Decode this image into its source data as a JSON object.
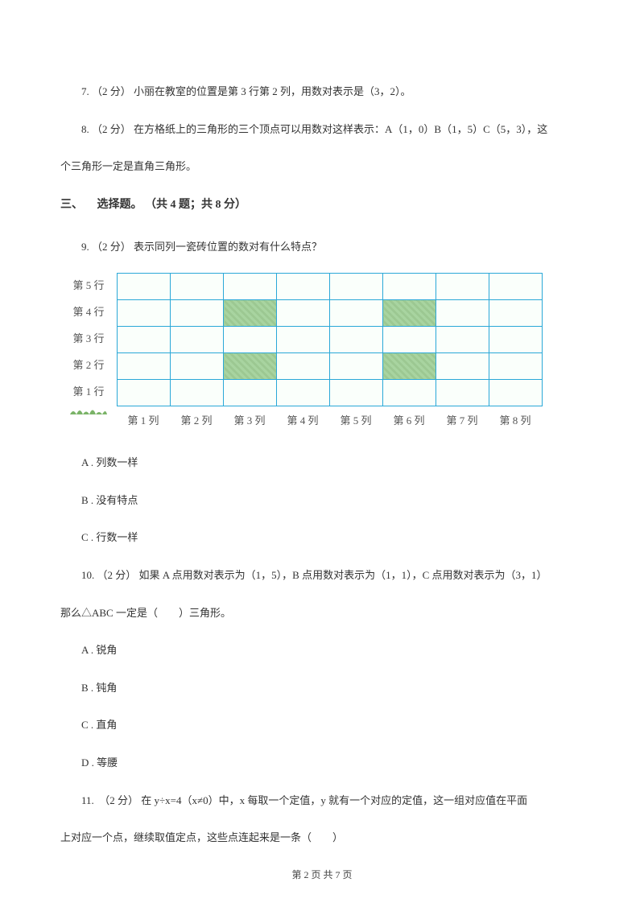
{
  "q7": {
    "number": "7.",
    "points": "（2 分）",
    "text": "小丽在教室的位置是第 3 行第 2 列，用数对表示是（3，2）。"
  },
  "q8": {
    "number": "8.",
    "points": "（2 分）",
    "text_a": "在方格纸上的三角形的三个顶点可以用数对这样表示：A（1，0）B（1，5）C（5，3），这",
    "text_b": "个三角形一定是直角三角形。"
  },
  "section3": {
    "label": "三、",
    "title": "选择题。",
    "meta": "（共 4 题；共 8 分）"
  },
  "q9": {
    "number": "9.",
    "points": "（2 分）",
    "text": "表示同列一瓷砖位置的数对有什么特点？",
    "grid": {
      "row_labels": [
        "第 5 行",
        "第 4 行",
        "第 3 行",
        "第 2 行",
        "第 1 行"
      ],
      "col_labels": [
        "第 1 列",
        "第 2 列",
        "第 3 列",
        "第 4 列",
        "第 5 列",
        "第 6 列",
        "第 7 列",
        "第 8 列"
      ],
      "rows": 5,
      "cols": 8,
      "filled_cells": [
        [
          1,
          2
        ],
        [
          1,
          5
        ],
        [
          3,
          2
        ],
        [
          3,
          5
        ]
      ],
      "border_color": "#2aa8d8",
      "fill_color": "#a8d4a0",
      "cell_bg": "#fafffb"
    },
    "options": {
      "a": "A . 列数一样",
      "b": "B . 没有特点",
      "c": "C . 行数一样"
    }
  },
  "q10": {
    "number": "10.",
    "points": "（2 分）",
    "text_a": "如果 A 点用数对表示为（1，5），B 点用数对表示为（1，1），C 点用数对表示为（3，1）",
    "text_b": "那么△ABC 一定是（　　）三角形。",
    "options": {
      "a": "A . 锐角",
      "b": "B . 钝角",
      "c": "C . 直角",
      "d": "D . 等腰"
    }
  },
  "q11": {
    "number": "11.",
    "points": "（2 分）",
    "text_a": "在 y÷x=4（x≠0）中，x 每取一个定值，y 就有一个对应的定值，这一组对应值在平面",
    "text_b": "上对应一个点，继续取值定点，这些点连起来是一条（　　）"
  },
  "footer": {
    "page_current": "2",
    "page_total": "7",
    "text": "第 2 页 共 7 页"
  }
}
